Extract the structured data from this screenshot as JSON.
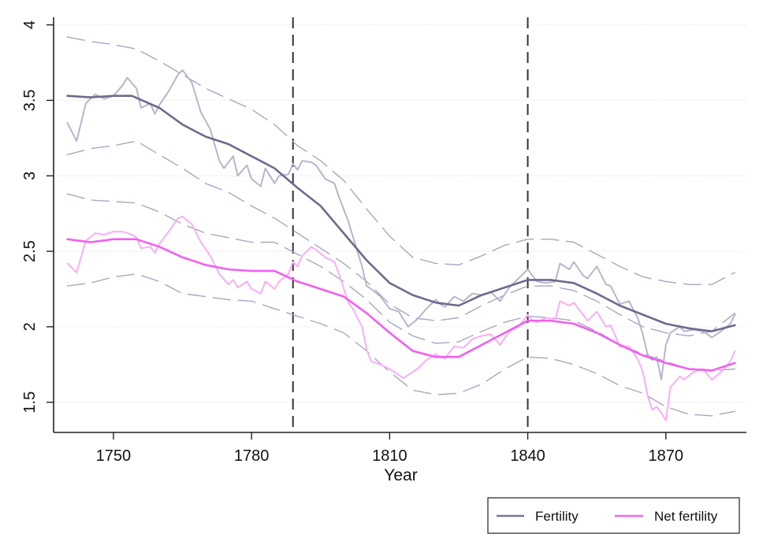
{
  "chart_data": {
    "type": "line",
    "title": "",
    "xlabel": "Year",
    "ylabel": "",
    "xlim": [
      1737,
      1887.5
    ],
    "ylim": [
      1.3,
      4.05
    ],
    "x_ticks": [
      1750,
      1780,
      1810,
      1840,
      1870
    ],
    "x_tick_labels": [
      "1750",
      "1780",
      "1810",
      "1840",
      "1870"
    ],
    "y_ticks": [
      1.5,
      2,
      2.5,
      3,
      3.5,
      4
    ],
    "y_tick_labels": [
      "1.5",
      "2",
      "2.5",
      "3",
      "3.5",
      "4"
    ],
    "grid": "horizontal at y ticks",
    "vertical_reference_lines": [
      1789,
      1840
    ],
    "legend": {
      "placement": "bottom-right",
      "entries": [
        {
          "label": "Fertility",
          "color": "#7a7596"
        },
        {
          "label": "Net fertility",
          "color": "#f566f0"
        }
      ]
    },
    "colors": {
      "fertility_smooth": "#6f6a8c",
      "fertility_raw": "#b9b4cc",
      "net_smooth": "#f25ff0",
      "net_raw": "#f9aef6",
      "band": "#aaa6c2",
      "ref_line": "#333333"
    },
    "series": [
      {
        "name": "Fertility (smoothed)",
        "role": "smooth",
        "x": [
          1740,
          1745,
          1750,
          1754,
          1760,
          1765,
          1770,
          1775,
          1780,
          1785,
          1790,
          1795,
          1800,
          1805,
          1810,
          1815,
          1820,
          1825,
          1830,
          1835,
          1840,
          1845,
          1850,
          1855,
          1860,
          1865,
          1870,
          1875,
          1880,
          1885
        ],
        "y": [
          3.53,
          3.52,
          3.53,
          3.53,
          3.45,
          3.34,
          3.26,
          3.21,
          3.13,
          3.05,
          2.92,
          2.8,
          2.62,
          2.44,
          2.29,
          2.21,
          2.16,
          2.14,
          2.21,
          2.26,
          2.31,
          2.31,
          2.29,
          2.22,
          2.14,
          2.08,
          2.02,
          1.99,
          1.97,
          2.01
        ]
      },
      {
        "name": "Fertility (annual)",
        "role": "raw",
        "x": [
          1740,
          1742,
          1744,
          1746,
          1748,
          1750,
          1752,
          1753,
          1755,
          1756,
          1758,
          1759,
          1760,
          1762,
          1764,
          1765,
          1767,
          1769,
          1771,
          1773,
          1774,
          1776,
          1777,
          1779,
          1780,
          1782,
          1783,
          1785,
          1786,
          1788,
          1789,
          1790,
          1791,
          1793,
          1794,
          1796,
          1798,
          1799,
          1801,
          1802,
          1804,
          1805,
          1806,
          1808,
          1810,
          1812,
          1813,
          1814,
          1816,
          1818,
          1820,
          1821,
          1822,
          1824,
          1826,
          1828,
          1830,
          1832,
          1834,
          1836,
          1838,
          1840,
          1841,
          1842,
          1844,
          1846,
          1847,
          1849,
          1850,
          1852,
          1853,
          1855,
          1857,
          1858,
          1860,
          1862,
          1864,
          1865,
          1866,
          1867,
          1868,
          1869,
          1870,
          1871,
          1873,
          1874,
          1876,
          1878,
          1880,
          1882,
          1884,
          1885
        ],
        "y": [
          3.35,
          3.23,
          3.48,
          3.54,
          3.51,
          3.53,
          3.6,
          3.65,
          3.58,
          3.45,
          3.48,
          3.41,
          3.47,
          3.56,
          3.67,
          3.7,
          3.62,
          3.42,
          3.31,
          3.1,
          3.05,
          3.13,
          3.0,
          3.07,
          2.98,
          2.93,
          3.05,
          2.95,
          3.0,
          3.01,
          3.08,
          3.04,
          3.1,
          3.09,
          3.07,
          2.98,
          2.95,
          2.86,
          2.7,
          2.6,
          2.4,
          2.27,
          2.25,
          2.2,
          2.12,
          2.1,
          2.05,
          2.0,
          2.05,
          2.12,
          2.18,
          2.15,
          2.13,
          2.2,
          2.17,
          2.22,
          2.21,
          2.23,
          2.17,
          2.26,
          2.32,
          2.38,
          2.34,
          2.3,
          2.29,
          2.3,
          2.42,
          2.38,
          2.43,
          2.34,
          2.32,
          2.4,
          2.28,
          2.27,
          2.15,
          2.17,
          2.05,
          1.95,
          1.82,
          1.78,
          1.8,
          1.65,
          1.88,
          1.96,
          2.0,
          1.97,
          1.98,
          1.97,
          1.93,
          1.97,
          2.02,
          2.08
        ]
      },
      {
        "name": "Fertility upper CI",
        "role": "band",
        "x": [
          1740,
          1745,
          1750,
          1755,
          1760,
          1765,
          1770,
          1775,
          1780,
          1785,
          1790,
          1795,
          1800,
          1805,
          1810,
          1815,
          1820,
          1825,
          1830,
          1835,
          1840,
          1845,
          1850,
          1855,
          1860,
          1865,
          1870,
          1875,
          1880,
          1885
        ],
        "y": [
          3.92,
          3.89,
          3.87,
          3.84,
          3.76,
          3.67,
          3.58,
          3.51,
          3.44,
          3.34,
          3.2,
          3.1,
          2.97,
          2.78,
          2.6,
          2.46,
          2.42,
          2.41,
          2.47,
          2.54,
          2.58,
          2.58,
          2.56,
          2.48,
          2.4,
          2.33,
          2.3,
          2.28,
          2.28,
          2.36
        ]
      },
      {
        "name": "Fertility lower CI",
        "role": "band",
        "x": [
          1740,
          1745,
          1750,
          1755,
          1760,
          1765,
          1770,
          1775,
          1780,
          1785,
          1790,
          1795,
          1800,
          1805,
          1810,
          1815,
          1820,
          1825,
          1830,
          1835,
          1840,
          1845,
          1850,
          1855,
          1860,
          1865,
          1870,
          1875,
          1880,
          1885
        ],
        "y": [
          3.14,
          3.18,
          3.2,
          3.23,
          3.14,
          3.05,
          2.95,
          2.89,
          2.8,
          2.72,
          2.62,
          2.52,
          2.42,
          2.3,
          2.15,
          2.06,
          2.04,
          2.06,
          2.14,
          2.21,
          2.27,
          2.27,
          2.24,
          2.17,
          2.08,
          2.0,
          1.96,
          1.94,
          1.97,
          2.09
        ]
      },
      {
        "name": "Net fertility (smoothed)",
        "role": "smooth",
        "x": [
          1740,
          1745,
          1750,
          1755,
          1760,
          1765,
          1770,
          1775,
          1780,
          1785,
          1790,
          1795,
          1800,
          1805,
          1810,
          1815,
          1820,
          1825,
          1830,
          1835,
          1840,
          1845,
          1850,
          1855,
          1860,
          1865,
          1870,
          1875,
          1880,
          1885
        ],
        "y": [
          2.58,
          2.56,
          2.58,
          2.58,
          2.53,
          2.46,
          2.41,
          2.38,
          2.37,
          2.37,
          2.3,
          2.25,
          2.2,
          2.09,
          1.96,
          1.84,
          1.8,
          1.8,
          1.88,
          1.96,
          2.04,
          2.04,
          2.02,
          1.96,
          1.88,
          1.81,
          1.76,
          1.72,
          1.71,
          1.76
        ]
      },
      {
        "name": "Net fertility (annual)",
        "role": "raw",
        "x": [
          1740,
          1742,
          1744,
          1746,
          1748,
          1750,
          1752,
          1754,
          1755,
          1756,
          1758,
          1759,
          1760,
          1762,
          1764,
          1765,
          1767,
          1769,
          1771,
          1773,
          1775,
          1776,
          1777,
          1779,
          1780,
          1782,
          1783,
          1785,
          1786,
          1788,
          1789,
          1790,
          1791,
          1793,
          1794,
          1796,
          1798,
          1799,
          1801,
          1802,
          1804,
          1805,
          1806,
          1808,
          1810,
          1812,
          1813,
          1814,
          1816,
          1818,
          1820,
          1821,
          1822,
          1824,
          1826,
          1828,
          1830,
          1832,
          1834,
          1836,
          1838,
          1840,
          1841,
          1842,
          1844,
          1846,
          1847,
          1849,
          1850,
          1852,
          1853,
          1855,
          1857,
          1858,
          1860,
          1862,
          1864,
          1865,
          1866,
          1867,
          1868,
          1869,
          1870,
          1871,
          1873,
          1874,
          1876,
          1878,
          1880,
          1882,
          1884,
          1885
        ],
        "y": [
          2.42,
          2.36,
          2.57,
          2.62,
          2.61,
          2.63,
          2.63,
          2.61,
          2.59,
          2.52,
          2.53,
          2.49,
          2.55,
          2.63,
          2.72,
          2.73,
          2.68,
          2.56,
          2.47,
          2.35,
          2.28,
          2.31,
          2.26,
          2.3,
          2.25,
          2.22,
          2.3,
          2.25,
          2.3,
          2.35,
          2.43,
          2.4,
          2.47,
          2.53,
          2.51,
          2.46,
          2.43,
          2.35,
          2.16,
          2.12,
          2.0,
          1.85,
          1.77,
          1.75,
          1.72,
          1.68,
          1.66,
          1.68,
          1.72,
          1.78,
          1.82,
          1.8,
          1.79,
          1.87,
          1.86,
          1.92,
          1.94,
          1.95,
          1.88,
          1.97,
          2.0,
          2.08,
          2.04,
          2.03,
          2.06,
          2.05,
          2.17,
          2.14,
          2.16,
          2.08,
          2.04,
          2.1,
          2.0,
          2.01,
          1.87,
          1.87,
          1.78,
          1.7,
          1.55,
          1.45,
          1.47,
          1.43,
          1.38,
          1.6,
          1.67,
          1.65,
          1.7,
          1.72,
          1.65,
          1.7,
          1.77,
          1.84
        ]
      },
      {
        "name": "Net fertility upper CI",
        "role": "band",
        "x": [
          1740,
          1745,
          1750,
          1755,
          1760,
          1765,
          1770,
          1775,
          1780,
          1785,
          1790,
          1795,
          1800,
          1805,
          1810,
          1815,
          1820,
          1825,
          1830,
          1835,
          1840,
          1845,
          1850,
          1855,
          1860,
          1865,
          1870,
          1875,
          1880,
          1885
        ],
        "y": [
          2.88,
          2.84,
          2.83,
          2.82,
          2.76,
          2.68,
          2.62,
          2.59,
          2.56,
          2.56,
          2.48,
          2.4,
          2.3,
          2.18,
          2.03,
          1.94,
          1.89,
          1.9,
          1.97,
          2.03,
          2.07,
          2.06,
          2.04,
          1.97,
          1.88,
          1.82,
          1.77,
          1.72,
          1.71,
          1.72
        ]
      },
      {
        "name": "Net fertility lower CI",
        "role": "band",
        "x": [
          1740,
          1745,
          1750,
          1755,
          1760,
          1765,
          1770,
          1775,
          1780,
          1785,
          1790,
          1795,
          1800,
          1805,
          1810,
          1815,
          1820,
          1825,
          1830,
          1835,
          1840,
          1845,
          1850,
          1855,
          1860,
          1865,
          1870,
          1875,
          1880,
          1885
        ],
        "y": [
          2.27,
          2.29,
          2.33,
          2.35,
          2.3,
          2.22,
          2.2,
          2.18,
          2.17,
          2.12,
          2.07,
          2.02,
          1.96,
          1.84,
          1.7,
          1.58,
          1.55,
          1.56,
          1.62,
          1.72,
          1.8,
          1.79,
          1.75,
          1.69,
          1.61,
          1.56,
          1.47,
          1.42,
          1.41,
          1.44
        ]
      }
    ]
  }
}
